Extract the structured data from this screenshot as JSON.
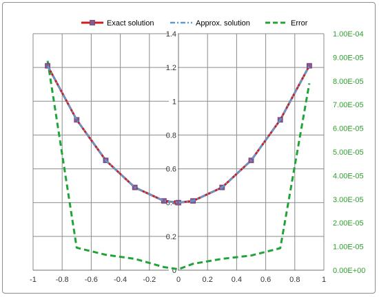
{
  "chart_data": {
    "type": "line",
    "title": "",
    "xlabel": "",
    "ylabel": "",
    "xlim": [
      -1,
      1
    ],
    "ylim": [
      0,
      1.4
    ],
    "y2lim": [
      0,
      0.0001
    ],
    "grid": true,
    "legend_position": "top",
    "x_ticks": [
      "-1",
      "-0.8",
      "-0.6",
      "-0.4",
      "-0.2",
      "0",
      "0.2",
      "0.4",
      "0.6",
      "0.8",
      "1"
    ],
    "y_ticks": [
      "0",
      "0.2",
      "0.4",
      "0.6",
      "0.8",
      "1",
      "1.2",
      "1.4"
    ],
    "y2_ticks": [
      "0.00E+00",
      "1.00E-05",
      "2.00E-05",
      "3.00E-05",
      "4.00E-05",
      "5.00E-05",
      "6.00E-05",
      "7.00E-05",
      "8.00E-05",
      "9.00E-05",
      "1.00E-04"
    ],
    "series": [
      {
        "name": "Exact solution",
        "axis": "left",
        "color": "#d01c1c",
        "x": [
          -0.9,
          -0.7,
          -0.5,
          -0.3,
          -0.1,
          0,
          0.1,
          0.3,
          0.5,
          0.7,
          0.9
        ],
        "y": [
          1.21,
          0.89,
          0.65,
          0.49,
          0.41,
          0.4,
          0.41,
          0.49,
          0.65,
          0.89,
          1.21
        ]
      },
      {
        "name": "Approx. solution",
        "axis": "left",
        "color": "#5b9bd5",
        "x": [
          -0.9,
          -0.7,
          -0.5,
          -0.3,
          -0.1,
          0,
          0.1,
          0.3,
          0.5,
          0.7,
          0.9
        ],
        "y": [
          1.21,
          0.89,
          0.65,
          0.49,
          0.41,
          0.4,
          0.41,
          0.49,
          0.65,
          0.89,
          1.21
        ]
      },
      {
        "name": "Error",
        "axis": "right",
        "color": "#22a33a",
        "x": [
          -0.9,
          -0.7,
          -0.5,
          -0.3,
          -0.1,
          0,
          0.1,
          0.3,
          0.5,
          0.7,
          0.9
        ],
        "y": [
          8.85e-05,
          9.5e-06,
          6.5e-06,
          4.8e-06,
          1.3e-06,
          4e-07,
          2.7e-06,
          4.8e-06,
          6.2e-06,
          9.3e-06,
          7.9e-05
        ]
      }
    ]
  }
}
